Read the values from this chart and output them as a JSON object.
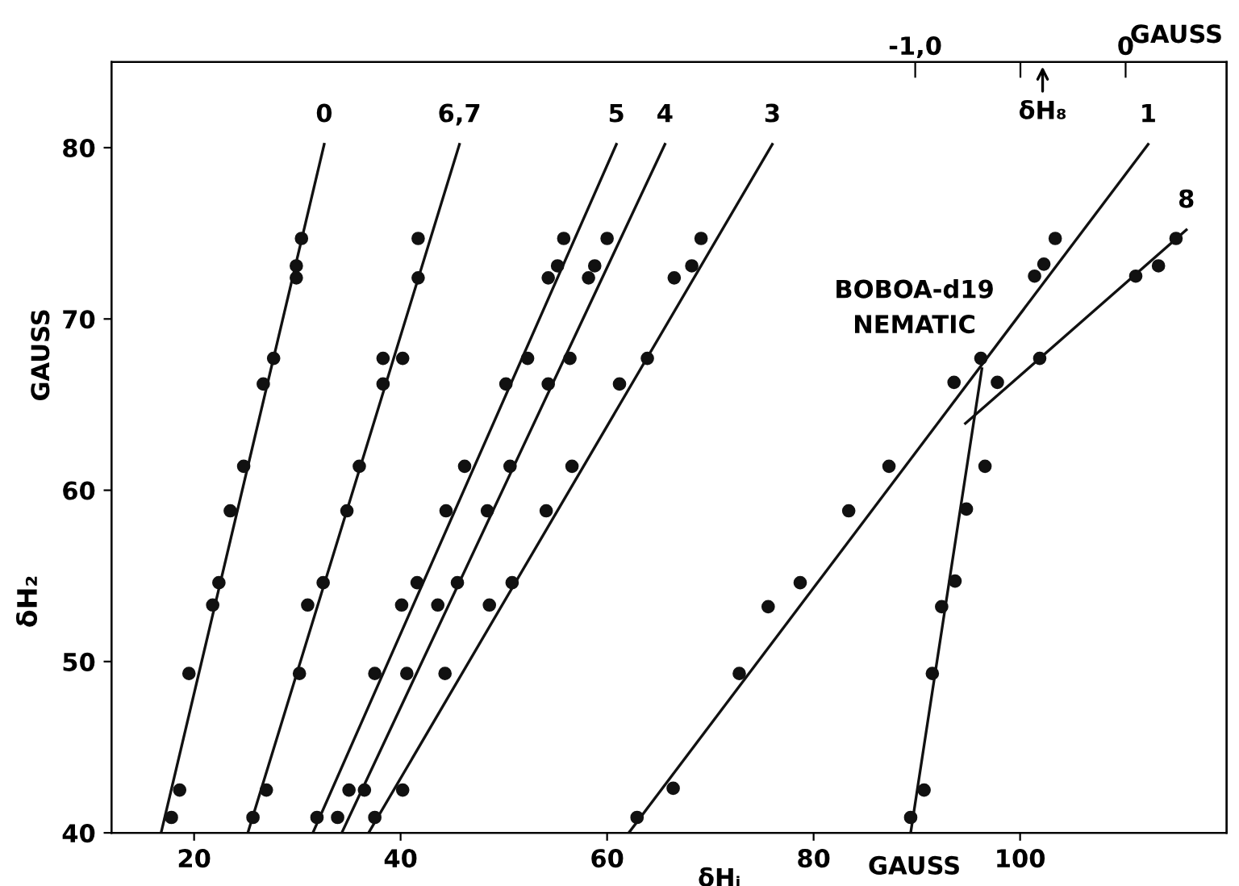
{
  "chart_data": {
    "type": "scatter",
    "xlabel": "δHᵢ",
    "ylabel": "δH₂",
    "x2label": "GAUSS",
    "xlim": [
      12,
      120
    ],
    "ylim": [
      40,
      85
    ],
    "xticks": [
      20,
      40,
      60,
      80,
      100
    ],
    "yticks": [
      40,
      50,
      60,
      70,
      80
    ],
    "x2lim": [
      -4.82,
      0.48
    ],
    "x2ticks": [
      {
        "value": -1.0,
        "label": "-1,0"
      },
      {
        "value": -0.5,
        "label": null
      },
      {
        "value": 0,
        "label": "0"
      }
    ],
    "marker": "circle",
    "line_style": "solid",
    "grid": false,
    "legend": false,
    "annotations": [
      "GAUSS",
      "GAUSS",
      "BOBOA-d19\nNEMATIC",
      "δH₈"
    ],
    "series": [
      {
        "color": "#111111",
        "x": [
          30.4,
          29.9,
          29.9,
          27.7,
          26.7,
          24.8,
          23.5,
          22.4,
          21.8,
          19.5,
          18.6,
          17.8
        ],
        "values": [
          74.7,
          73.1,
          72.4,
          67.7,
          66.2,
          61.4,
          58.8,
          54.6,
          53.3,
          49.3,
          42.5,
          40.9
        ]
      },
      {
        "type": "line",
        "name": "0",
        "marker": "none",
        "color": "#111111",
        "x": [
          16.8,
          32.6
        ],
        "values": [
          40,
          80.2
        ]
      },
      {
        "color": "#111111",
        "x": [
          41.7,
          41.7,
          38.3,
          40.2,
          38.3,
          36.0,
          34.8,
          32.5,
          31.0,
          30.2,
          27.0,
          25.7
        ],
        "values": [
          74.7,
          72.4,
          67.7,
          67.7,
          66.2,
          61.4,
          58.8,
          54.6,
          53.3,
          49.3,
          42.5,
          40.9
        ]
      },
      {
        "type": "line",
        "name": "6,7",
        "marker": "none",
        "color": "#111111",
        "x": [
          25.2,
          45.7
        ],
        "values": [
          40,
          80.2
        ]
      },
      {
        "color": "#111111",
        "x": [
          55.8,
          55.2,
          54.3,
          52.3,
          50.2,
          46.2,
          44.4,
          41.6,
          40.1,
          37.5,
          35.0,
          31.9
        ],
        "values": [
          74.7,
          73.1,
          72.4,
          67.7,
          66.2,
          61.4,
          58.8,
          54.6,
          53.3,
          49.3,
          42.5,
          40.9
        ]
      },
      {
        "type": "line",
        "name": "5",
        "marker": "none",
        "color": "#111111",
        "x": [
          31.5,
          60.9
        ],
        "values": [
          40,
          80.2
        ]
      },
      {
        "color": "#111111",
        "x": [
          60.0,
          58.8,
          58.2,
          56.4,
          54.3,
          50.6,
          48.4,
          45.5,
          43.6,
          40.6,
          36.5,
          33.9
        ],
        "values": [
          74.7,
          73.1,
          72.4,
          67.7,
          66.2,
          61.4,
          58.8,
          54.6,
          53.3,
          49.3,
          42.5,
          40.9
        ]
      },
      {
        "type": "line",
        "name": "4",
        "marker": "none",
        "color": "#111111",
        "x": [
          34.3,
          65.6
        ],
        "values": [
          40,
          80.2
        ]
      },
      {
        "color": "#111111",
        "x": [
          69.1,
          68.2,
          66.5,
          63.9,
          61.2,
          56.6,
          54.1,
          50.8,
          48.6,
          44.3,
          40.2,
          37.5
        ],
        "values": [
          74.7,
          73.1,
          72.4,
          67.7,
          66.2,
          61.4,
          58.8,
          54.6,
          53.3,
          49.3,
          42.5,
          40.9
        ]
      },
      {
        "type": "line",
        "name": "3",
        "marker": "none",
        "color": "#111111",
        "x": [
          36.9,
          76.0
        ],
        "values": [
          40,
          80.2
        ]
      },
      {
        "color": "#111111",
        "x": [
          103.4,
          102.3,
          101.4,
          93.6,
          87.3,
          83.4,
          78.7,
          75.6,
          72.8,
          66.4,
          62.9
        ],
        "values": [
          74.7,
          73.2,
          72.5,
          66.3,
          61.4,
          58.8,
          54.6,
          53.2,
          49.3,
          42.6,
          40.9
        ]
      },
      {
        "type": "line",
        "name": "1",
        "marker": "none",
        "color": "#111111",
        "x": [
          62.1,
          112.4
        ],
        "values": [
          40,
          80.2
        ]
      },
      {
        "color": "#111111",
        "x": [
          115.1,
          113.4,
          111.2,
          101.9,
          97.8
        ],
        "values": [
          74.7,
          73.1,
          72.5,
          67.7,
          66.3
        ]
      },
      {
        "type": "line",
        "name": "8",
        "marker": "none",
        "color": "#111111",
        "x": [
          94.7,
          116.1
        ],
        "values": [
          63.9,
          75.2
        ]
      },
      {
        "color": "#111111",
        "x": [
          96.2,
          96.6,
          94.8,
          93.7,
          92.4,
          91.5,
          90.7,
          89.4
        ],
        "values": [
          67.7,
          61.4,
          58.9,
          54.7,
          53.2,
          49.3,
          42.5,
          40.9
        ]
      },
      {
        "type": "line",
        "marker": "none",
        "color": "#111111",
        "x": [
          89.4,
          96.3
        ],
        "values": [
          40,
          67.1
        ]
      }
    ]
  }
}
